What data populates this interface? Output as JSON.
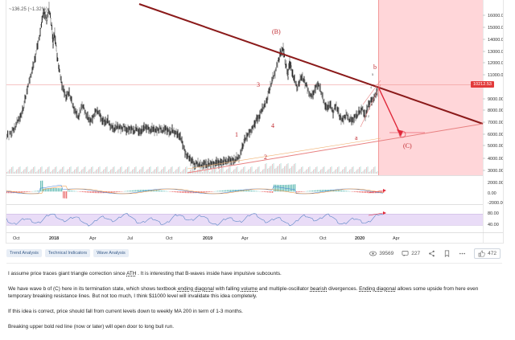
{
  "chart": {
    "price_readout": "~136.25 (~1.32%)",
    "current_price_badge": "10212.53",
    "price_ticks": [
      "16000.00",
      "15000.00",
      "14000.00",
      "13000.00",
      "12000.00",
      "11000.00",
      "9000.00",
      "8000.00",
      "7000.00",
      "6000.00",
      "5000.00",
      "4000.00",
      "3000.00"
    ],
    "macd_ticks": [
      "2000.00",
      "0.00",
      "-2000.00"
    ],
    "rsi_ticks": [
      "80.00",
      "40.00"
    ],
    "time_labels": [
      "Oct",
      "2018",
      "Apr",
      "Jul",
      "Oct",
      "2019",
      "Apr",
      "Jul",
      "Oct",
      "2020",
      "Apr"
    ],
    "wave_labels": {
      "B": "(B)",
      "C": "(C)",
      "b": "b",
      "a": "a",
      "w1": "1",
      "w2": "2",
      "w3": "3",
      "w4": "4",
      "w5": "5"
    },
    "colors": {
      "trendline": "#8b1a1a",
      "support": "#e88080",
      "projection_zone": "#ffd6d9",
      "projection_arrow": "#e0283a",
      "candles": "#222222",
      "rsi_band": "#e9dcf7",
      "rsi_line": "#5a86c5",
      "badge": "#e23a3a"
    }
  },
  "tags": [
    "Trend Analysis",
    "Technical Indicators",
    "Wave Analysis"
  ],
  "stats": {
    "views": "39569",
    "comments": "227",
    "likes": "472"
  },
  "description": {
    "p1_prefix": "I assume price traces giant triangle correction since ",
    "p1_ath": "ATH",
    "p1_suffix": " . It is interesting that B-waves inside have impulsive subcounts.",
    "p2_a": "We have wave b of (C) here in its termination state, which shows textbook ",
    "p2_ending_diagonal": "ending diagonal",
    "p2_b": " with falling ",
    "p2_volume": "volume",
    "p2_c": " and multiple-oscillator ",
    "p2_bearish": "bearish",
    "p2_d": " divergences. ",
    "p2_ending_diagonal2": "Ending diagonal",
    "p2_e": " allows some upside from here even temporary breaking resistance lines. But not too much, I think $11000 level will invalidate this idea completely.",
    "p3": "If this idea is correct, price should fall from current levels down to weekly MA 200 in term of 1-3 months.",
    "p4": "Breaking upper bold red line (now or later) will open door to long bull run."
  }
}
